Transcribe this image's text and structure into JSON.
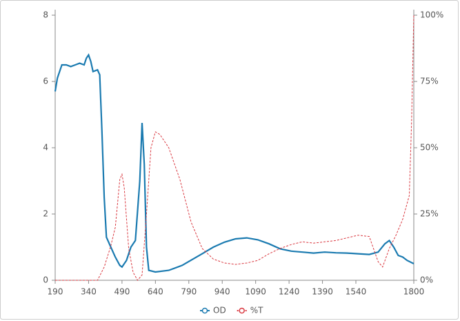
{
  "chart_data": {
    "type": "line",
    "xlim": [
      190,
      1800
    ],
    "xticks": [
      190,
      340,
      490,
      640,
      790,
      940,
      1090,
      1240,
      1390,
      1540,
      1800
    ],
    "ylim": [
      0,
      8
    ],
    "yticks": [
      0,
      2,
      4,
      6,
      8
    ],
    "y2lim": [
      0,
      100
    ],
    "y2ticks": [
      {
        "value": 0,
        "label": "0%"
      },
      {
        "value": 25,
        "label": "25%"
      },
      {
        "value": 50,
        "label": "50%"
      },
      {
        "value": 75,
        "label": "75%"
      },
      {
        "value": 100,
        "label": "100%"
      }
    ],
    "series": [
      {
        "name": "OD",
        "color": "#1a7ab0",
        "dash": false,
        "x": [
          190,
          200,
          220,
          240,
          260,
          280,
          300,
          320,
          330,
          340,
          350,
          360,
          380,
          390,
          400,
          410,
          420,
          440,
          460,
          480,
          490,
          510,
          530,
          550,
          570,
          580,
          590,
          600,
          610,
          640,
          700,
          760,
          850,
          900,
          950,
          1000,
          1050,
          1100,
          1150,
          1200,
          1250,
          1300,
          1350,
          1400,
          1450,
          1500,
          1550,
          1600,
          1640,
          1670,
          1690,
          1710,
          1730,
          1750,
          1770,
          1800
        ],
        "values": [
          5.7,
          6.1,
          6.5,
          6.5,
          6.45,
          6.5,
          6.55,
          6.5,
          6.7,
          6.8,
          6.6,
          6.3,
          6.35,
          6.2,
          4.5,
          2.5,
          1.3,
          1.0,
          0.7,
          0.45,
          0.4,
          0.6,
          1.0,
          1.2,
          3.0,
          4.75,
          3.5,
          1.0,
          0.3,
          0.25,
          0.3,
          0.45,
          0.8,
          1.0,
          1.15,
          1.25,
          1.28,
          1.22,
          1.1,
          0.95,
          0.88,
          0.85,
          0.82,
          0.85,
          0.83,
          0.82,
          0.8,
          0.78,
          0.85,
          1.1,
          1.2,
          1.0,
          0.75,
          0.7,
          0.6,
          0.5
        ]
      },
      {
        "name": "%T",
        "color": "#d9363e",
        "dash": true,
        "axis": "y2",
        "x": [
          190,
          380,
          410,
          440,
          460,
          480,
          490,
          500,
          520,
          540,
          560,
          580,
          600,
          620,
          640,
          660,
          700,
          750,
          800,
          850,
          900,
          950,
          1000,
          1050,
          1100,
          1150,
          1200,
          1250,
          1300,
          1350,
          1400,
          1450,
          1500,
          1550,
          1600,
          1640,
          1660,
          1690,
          1720,
          1750,
          1780,
          1790,
          1800
        ],
        "values": [
          0,
          0,
          5,
          13,
          20,
          38,
          40,
          35,
          12,
          3,
          0,
          2,
          25,
          50,
          56,
          55,
          50,
          38,
          22,
          12,
          8,
          6.5,
          6,
          6.5,
          7.5,
          10,
          12,
          13.5,
          14.5,
          14,
          14.5,
          15,
          16,
          17,
          16.5,
          7,
          5,
          12,
          17,
          23,
          32,
          60,
          100
        ]
      }
    ]
  }
}
